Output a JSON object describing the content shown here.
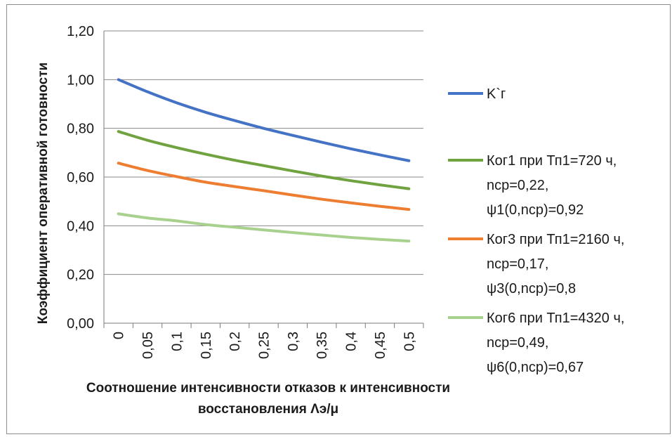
{
  "chart_data": {
    "type": "line",
    "title": "",
    "xlabel": [
      "Соотношение интенсивности отказов к интенсивности",
      "восстановления Λэ/μ"
    ],
    "ylabel": "Коэффициент оперативной готовности",
    "ylim": [
      0,
      1.2
    ],
    "y_ticks": [
      "0,00",
      "0,20",
      "0,40",
      "0,60",
      "0,80",
      "1,00",
      "1,20"
    ],
    "categories": [
      "0",
      "0,05",
      "0,1",
      "0,15",
      "0,2",
      "0,25",
      "0,3",
      "0,35",
      "0,4",
      "0,45",
      "0,5"
    ],
    "grid": "horizontal",
    "legend_position": "right",
    "series": [
      {
        "name": "K`г",
        "legend_lines": [
          "K`г"
        ],
        "color": "#4472c4",
        "values": [
          1.0,
          0.95,
          0.905,
          0.866,
          0.832,
          0.8,
          0.771,
          0.743,
          0.716,
          0.691,
          0.667
        ]
      },
      {
        "name": "Ког1 при Тп1=720 ч, nср=0,22, ψ1(0,nср)=0,92",
        "legend_lines": [
          "Ког1 при Тп1=720 ч,",
          "nср=0,22,",
          "ψ1(0,nср)=0,92"
        ],
        "color": "#70a340",
        "values": [
          0.787,
          0.751,
          0.721,
          0.694,
          0.669,
          0.647,
          0.625,
          0.604,
          0.585,
          0.568,
          0.552
        ]
      },
      {
        "name": "Ког3 при Тп1=2160 ч, nср=0,17, ψ3(0,nср)=0,8",
        "legend_lines": [
          "Ког3 при Тп1=2160 ч,",
          "nср=0,17,",
          "ψ3(0,nср)=0,8"
        ],
        "color": "#ed7d31",
        "values": [
          0.657,
          0.627,
          0.602,
          0.579,
          0.561,
          0.544,
          0.526,
          0.509,
          0.494,
          0.48,
          0.467
        ]
      },
      {
        "name": "Ког6 при Тп1=4320 ч, nср=0,49, ψ6(0,nср)=0,67",
        "legend_lines": [
          "Ког6 при Тп1=4320 ч,",
          "nср=0,49,",
          "ψ6(0,nср)=0,67"
        ],
        "color": "#a9d18e",
        "values": [
          0.449,
          0.432,
          0.42,
          0.405,
          0.394,
          0.383,
          0.372,
          0.362,
          0.352,
          0.344,
          0.337
        ]
      }
    ]
  }
}
